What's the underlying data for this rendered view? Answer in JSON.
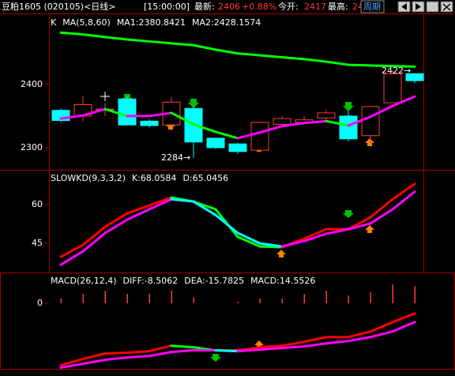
{
  "header": {
    "symbol": "豆粕1605 (020105)<日线>",
    "time": "[15:00:00]",
    "latest_label": "最新:",
    "latest": "2406",
    "change": "+0.88%",
    "open_label": "今开:",
    "open": "2417",
    "high_label": "最高:",
    "high": "24",
    "period_button": "周期"
  },
  "chart_data": [
    {
      "type": "candlestick",
      "title": "K",
      "subtitle": "MA(5,8,60)",
      "open": [
        2359,
        2350,
        2360,
        2377,
        2342,
        2336,
        2362,
        2315,
        2306,
        2296,
        2337,
        2340,
        2347,
        2350,
        2319,
        2371,
        2417
      ],
      "high": [
        2362,
        2381,
        2370,
        2381,
        2345,
        2380,
        2365,
        2316,
        2308,
        2341,
        2350,
        2350,
        2360,
        2358,
        2366,
        2422,
        2418
      ],
      "low": [
        2340,
        2342,
        2350,
        2335,
        2332,
        2334,
        2284,
        2298,
        2290,
        2294,
        2334,
        2338,
        2340,
        2310,
        2306,
        2370,
        2402
      ],
      "close": [
        2343,
        2368,
        2361,
        2336,
        2335,
        2372,
        2309,
        2300,
        2294,
        2340,
        2346,
        2344,
        2355,
        2314,
        2365,
        2417,
        2406
      ],
      "up_color": "#ff3c3c",
      "down_color": "#00ffff",
      "ylim": [
        2265,
        2511
      ],
      "yticks": [
        2300,
        2400
      ],
      "annotations": [
        "2284→",
        "2422→"
      ],
      "series": [
        {
          "name": "MA1:2380.8421",
          "color": "#40ff40",
          "up_color": "#ff00ff",
          "down_color": "#00ff00",
          "values": [
            2346,
            2351,
            2361,
            2350,
            2350,
            2355,
            2337,
            2325,
            2315,
            2324,
            2334,
            2339,
            2342,
            2335,
            2349,
            2366,
            2380.8421
          ]
        },
        {
          "name": "MA2:2428.1574",
          "color": "#40ff40",
          "up_color": "#00ff00",
          "down_color": "#00ff00",
          "values": [
            2482,
            2479,
            2475,
            2471,
            2468,
            2465,
            2462,
            2455,
            2449,
            2446,
            2443,
            2440,
            2436,
            2431,
            2430,
            2429,
            2428.1574
          ]
        }
      ]
    },
    {
      "type": "line",
      "title": "SLOWKD(9,3,3,2)",
      "ylim": [
        33.7,
        73.5
      ],
      "yticks": [
        45,
        60
      ],
      "series": [
        {
          "name": "K:68.0584",
          "color": "#40ff40",
          "up_color": "#ff0000",
          "down_color": "#00ff00",
          "values": [
            39.8,
            44.4,
            51.4,
            56.6,
            59.7,
            62.8,
            61.2,
            58.2,
            47.5,
            43.8,
            43.5,
            46.8,
            50.5,
            50.5,
            55.1,
            62.1,
            68.0584
          ]
        },
        {
          "name": "D:65.0456",
          "color": "#00ffff",
          "up_color": "#ff00ff",
          "down_color": "#00ffff",
          "values": [
            36.7,
            41.9,
            49,
            54.2,
            58.2,
            62.1,
            61.2,
            56,
            49,
            45,
            43.8,
            45.9,
            48.7,
            50.5,
            52.7,
            58.2,
            65.0456
          ]
        }
      ]
    },
    {
      "type": "line",
      "title": "MACD(26,12,4)",
      "ylim": [
        -56,
        26
      ],
      "yticks": [
        0
      ],
      "series": [
        {
          "name": "DIFF:-8.5062",
          "color": "#40ff40",
          "up_color": "#ff0000",
          "down_color": "#00ff00",
          "values": [
            -52.3,
            -47,
            -42.4,
            -41.7,
            -40.4,
            -35.8,
            -37.1,
            -39.7,
            -39.7,
            -37.1,
            -35.8,
            -32.5,
            -28.5,
            -28.5,
            -23.8,
            -15.9,
            -8.5062
          ]
        },
        {
          "name": "DEA:-15.7825",
          "color": "#00ffff",
          "up_color": "#ff00ff",
          "down_color": "#00ffff",
          "values": [
            -54.3,
            -51,
            -47.7,
            -45.7,
            -44.4,
            -41.1,
            -39.7,
            -39.7,
            -40.4,
            -39.1,
            -37.7,
            -36.4,
            -33.8,
            -31.8,
            -28.5,
            -23.8,
            -15.7825
          ]
        },
        {
          "name": "MACD:14.5526",
          "color": "#ffffff",
          "type": "bar",
          "up_color": "#ff3c3c",
          "down_color": "#00ffff",
          "values": [
            4,
            8,
            10.6,
            8,
            8,
            10.6,
            5.2,
            0,
            1.4,
            4,
            3.8,
            7.8,
            10.6,
            6.6,
            9.4,
            15.8,
            14.5526
          ]
        }
      ]
    }
  ]
}
